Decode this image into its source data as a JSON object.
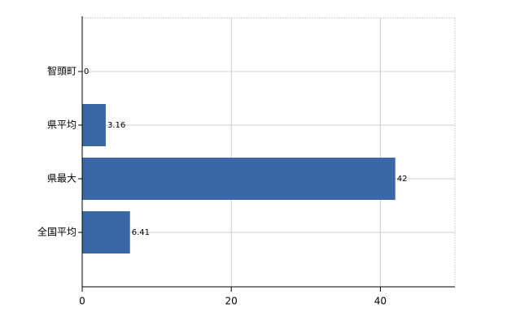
{
  "chart_data": {
    "type": "bar",
    "orientation": "horizontal",
    "categories": [
      "智頭町",
      "県平均",
      "県最大",
      "全国平均"
    ],
    "values": [
      0,
      3.16,
      42,
      6.41
    ],
    "color": "#3a67a5",
    "xlim": [
      0,
      50
    ],
    "xticks": [
      0,
      20,
      40
    ],
    "grid": true
  }
}
